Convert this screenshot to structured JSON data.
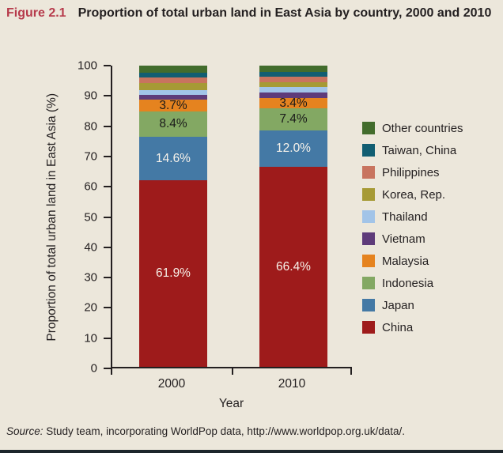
{
  "figure": {
    "label": "Figure 2.1",
    "title": "Proportion of total urban land in East Asia by country, 2000 and 2010"
  },
  "source": {
    "prefix": "Source:",
    "text": " Study team, incorporating WorldPop data, http://www.worldpop.org.uk/data/."
  },
  "colors": {
    "background": "#ece7db",
    "axis": "#231f20",
    "figure_label_accent": "#b63a4b"
  },
  "chart_data": {
    "type": "bar",
    "subtype": "stacked-percent",
    "title": "Proportion of total urban land in East Asia by country, 2000 and 2010",
    "categories": [
      "2000",
      "2010"
    ],
    "xlabel": "Year",
    "ylabel": "Proportion of total urban land in East Asia (%)",
    "ylim": [
      0,
      100
    ],
    "ytick_step": 10,
    "grid": false,
    "legend_position": "right",
    "legend_order": "top-to-bottom is reverse of stacking order (Other countries first, China last)",
    "series_note": "series listed bottom-to-top of stack; values for unlabeled thin segments are estimated from pixel heights",
    "series": [
      {
        "name": "China",
        "color": "#9e1b1b",
        "values": [
          61.9,
          66.4
        ],
        "labels": [
          "61.9%",
          "66.4%"
        ],
        "label_color": "#f7f2ea"
      },
      {
        "name": "Japan",
        "color": "#4479a5",
        "values": [
          14.6,
          12.0
        ],
        "labels": [
          "14.6%",
          "12.0%"
        ],
        "label_color": "#f7f2ea"
      },
      {
        "name": "Indonesia",
        "color": "#83a863",
        "values": [
          8.4,
          7.4
        ],
        "labels": [
          "8.4%",
          "7.4%"
        ],
        "label_color": "#1a1a1a"
      },
      {
        "name": "Malaysia",
        "color": "#e5831f",
        "values": [
          3.7,
          3.4
        ],
        "labels": [
          "3.7%",
          "3.4%"
        ],
        "label_color": "#1a1a1a"
      },
      {
        "name": "Vietnam",
        "color": "#5e3b7a",
        "values": [
          1.7,
          1.9
        ],
        "labels": [
          "",
          ""
        ]
      },
      {
        "name": "Thailand",
        "color": "#a2c4e8",
        "values": [
          1.7,
          1.7
        ],
        "labels": [
          "",
          ""
        ]
      },
      {
        "name": "Korea, Rep.",
        "color": "#a69a35",
        "values": [
          2.2,
          1.7
        ],
        "labels": [
          "",
          ""
        ]
      },
      {
        "name": "Philippines",
        "color": "#c8745f",
        "values": [
          1.8,
          1.9
        ],
        "labels": [
          "",
          ""
        ]
      },
      {
        "name": "Taiwan, China",
        "color": "#115e72",
        "values": [
          1.7,
          1.5
        ],
        "labels": [
          "",
          ""
        ]
      },
      {
        "name": "Other countries",
        "color": "#426c2c",
        "values": [
          2.3,
          2.1
        ],
        "labels": [
          "",
          ""
        ]
      }
    ]
  }
}
